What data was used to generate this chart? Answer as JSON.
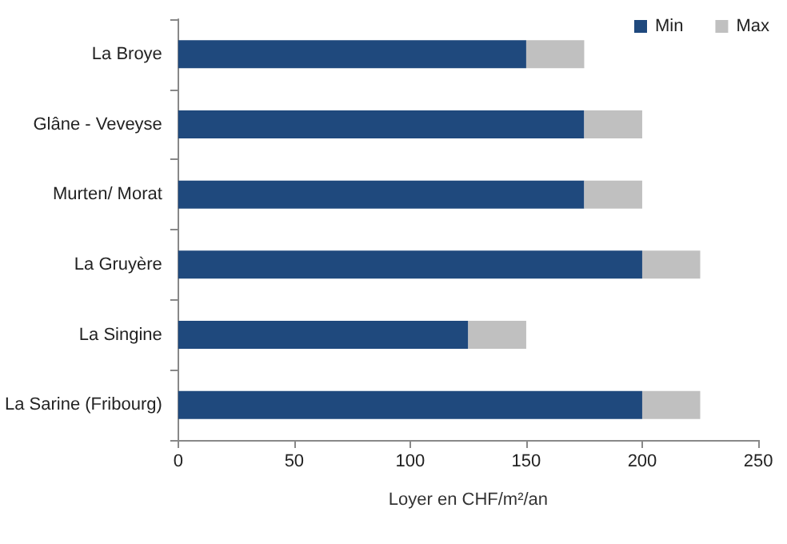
{
  "chart_data": {
    "type": "bar",
    "orientation": "horizontal",
    "stacked": true,
    "categories": [
      "La Broye",
      "Glâne - Veveyse",
      "Murten/ Morat",
      "La Gruyère",
      "La Singine",
      "La Sarine (Fribourg)"
    ],
    "series": [
      {
        "name": "Min",
        "color": "#1f497d",
        "values": [
          150,
          175,
          175,
          200,
          125,
          200
        ]
      },
      {
        "name": "Max",
        "color": "#c0c0c0",
        "values": [
          25,
          25,
          25,
          25,
          25,
          25
        ]
      }
    ],
    "xlabel": "Loyer en CHF/m²/an",
    "xlim": [
      0,
      250
    ],
    "xticks": [
      0,
      50,
      100,
      150,
      200,
      250
    ],
    "grid": false,
    "legend": "top right"
  }
}
